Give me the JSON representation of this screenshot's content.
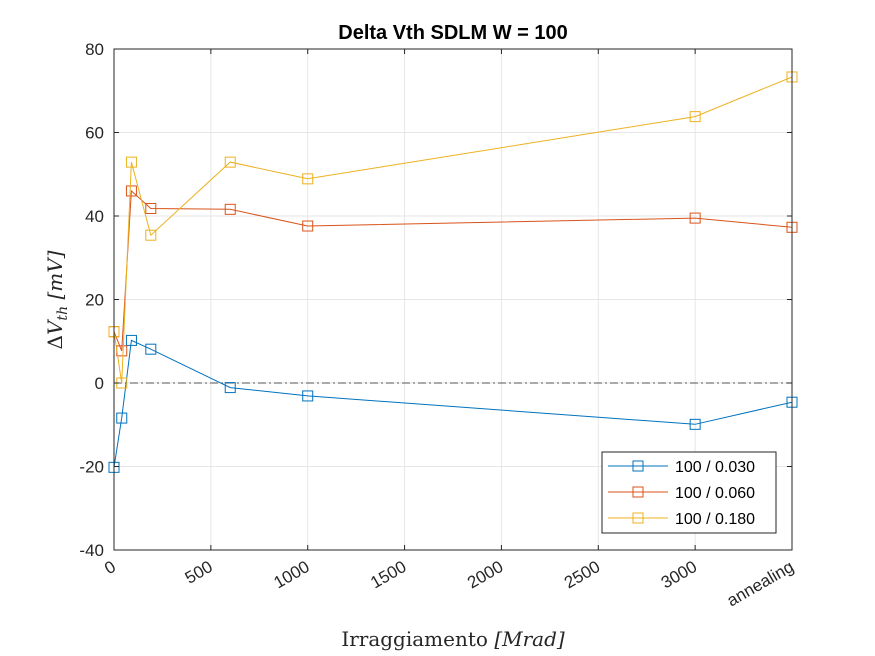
{
  "chart_data": {
    "type": "line",
    "title": "Delta Vth SDLM W = 100",
    "xlabel": {
      "text": "Irraggiamento ",
      "unit": "[Mrad]"
    },
    "ylabel": {
      "delta": "Δ",
      "var": "V",
      "sub": "th",
      "unit": " [mV]"
    },
    "xlim": [
      0,
      3500
    ],
    "ylim": [
      -40,
      80
    ],
    "xticks": [
      {
        "value": 0,
        "label": "0"
      },
      {
        "value": 500,
        "label": "500"
      },
      {
        "value": 1000,
        "label": "1000"
      },
      {
        "value": 1500,
        "label": "1500"
      },
      {
        "value": 2000,
        "label": "2000"
      },
      {
        "value": 2500,
        "label": "2500"
      },
      {
        "value": 3000,
        "label": "3000"
      },
      {
        "value": 3500,
        "label": "annealing"
      }
    ],
    "yticks": [
      -40,
      -20,
      0,
      20,
      40,
      60,
      80
    ],
    "grid": true,
    "legend_position": "bottom-right",
    "reference_line": {
      "y": 0,
      "style": "dash-dot",
      "color": "#262626"
    },
    "x": [
      0,
      40,
      90,
      190,
      600,
      1000,
      3000,
      3500
    ],
    "series": [
      {
        "name": "100 / 0.030",
        "color": "#0072BD",
        "values": [
          -20.2,
          -8.4,
          10.2,
          8.1,
          -1.1,
          -3.1,
          -9.9,
          -4.6
        ]
      },
      {
        "name": "100 / 0.060",
        "color": "#D95319",
        "values": [
          12.3,
          7.7,
          46.0,
          41.8,
          41.6,
          37.6,
          39.5,
          37.3
        ]
      },
      {
        "name": "100 / 0.180",
        "color": "#EDB120",
        "values": [
          12.3,
          0.0,
          52.9,
          35.4,
          52.9,
          48.9,
          63.8,
          73.3
        ]
      }
    ]
  }
}
